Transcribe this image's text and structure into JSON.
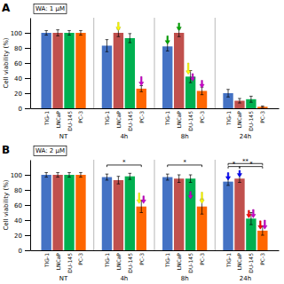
{
  "chart_data": [
    {
      "type": "bar",
      "title": "A",
      "subtitle": "WA: 1 μM",
      "categories": [
        "NT",
        "4h",
        "8h",
        "24h"
      ],
      "series": [
        {
          "name": "TIG-1",
          "color": "#4472C4",
          "values": [
            100,
            83,
            82,
            20
          ],
          "errors": [
            3,
            8,
            6,
            5
          ]
        },
        {
          "name": "LNCaP",
          "color": "#C0504D",
          "values": [
            100,
            100,
            100,
            10
          ],
          "errors": [
            4,
            5,
            5,
            3
          ]
        },
        {
          "name": "DU-145",
          "color": "#00B050",
          "values": [
            100,
            93,
            42,
            12
          ],
          "errors": [
            3,
            6,
            8,
            4
          ]
        },
        {
          "name": "PC-3",
          "color": "#FF6600",
          "values": [
            100,
            26,
            23,
            2
          ],
          "errors": [
            3,
            4,
            5,
            1
          ]
        }
      ],
      "ylabel": "Cell viability (%)",
      "ylim": [
        0,
        120
      ],
      "yticks": [
        0,
        20,
        40,
        60,
        80,
        100
      ],
      "grid": false,
      "annotations": [
        {
          "type": "arrow",
          "group": "4h",
          "series": "LNCaP",
          "color": "yellow",
          "y_tip": 103,
          "y_tail": 114
        },
        {
          "type": "arrow",
          "group": "4h",
          "series": "PC-3",
          "color": "#CC00CC",
          "y_tip": 30,
          "y_tail": 42
        },
        {
          "type": "arrow",
          "group": "8h",
          "series": "TIG-1",
          "color": "#00AA00",
          "y_tip": 85,
          "y_tail": 96
        },
        {
          "type": "arrow",
          "group": "8h",
          "series": "LNCaP",
          "color": "#00AA00",
          "y_tip": 103,
          "y_tail": 113
        },
        {
          "type": "arrow",
          "group": "8h",
          "series": "DU-145",
          "color": "yellow",
          "y_tip": 45,
          "y_tail": 60
        },
        {
          "type": "arrow",
          "group": "8h",
          "series": "DU-145",
          "color": "#CC00CC",
          "y_tip": 36,
          "y_tail": 46
        },
        {
          "type": "arrow",
          "group": "8h",
          "series": "PC-3",
          "color": "#CC00CC",
          "y_tip": 27,
          "y_tail": 37
        }
      ]
    },
    {
      "type": "bar",
      "title": "B",
      "subtitle": "WA: 2 μM",
      "categories": [
        "NT",
        "4h",
        "8h",
        "24h"
      ],
      "series": [
        {
          "name": "TIG-1",
          "color": "#4472C4",
          "values": [
            100,
            97,
            97,
            91
          ],
          "errors": [
            3,
            4,
            4,
            5
          ]
        },
        {
          "name": "LNCaP",
          "color": "#C0504D",
          "values": [
            100,
            93,
            95,
            95
          ],
          "errors": [
            3,
            5,
            5,
            5
          ]
        },
        {
          "name": "DU-145",
          "color": "#00B050",
          "values": [
            100,
            98,
            95,
            42
          ],
          "errors": [
            3,
            4,
            5,
            8
          ]
        },
        {
          "name": "PC-3",
          "color": "#FF6600",
          "values": [
            100,
            58,
            58,
            26
          ],
          "errors": [
            3,
            8,
            10,
            6
          ]
        }
      ],
      "ylabel": "Cell viability (%)",
      "ylim": [
        0,
        120
      ],
      "yticks": [
        0,
        20,
        40,
        60,
        80,
        100
      ],
      "grid": false,
      "annotations": [
        {
          "type": "arrow",
          "group": "4h",
          "series": "PC-3",
          "color": "yellow",
          "y_tip": 62,
          "y_tail": 76
        },
        {
          "type": "arrow",
          "group": "4h",
          "series": "PC-3",
          "color": "#CC00CC",
          "y_tip": 62,
          "y_tail": 72
        },
        {
          "type": "arrow",
          "group": "8h",
          "series": "PC-3",
          "color": "yellow",
          "y_tip": 62,
          "y_tail": 77
        },
        {
          "type": "arrow",
          "group": "8h",
          "series": "DU-145",
          "color": "#CC00CC",
          "y_tip": 68,
          "y_tail": 78
        },
        {
          "type": "arrow",
          "group": "24h",
          "series": "TIG-1",
          "color": "blue",
          "y_tip": 93,
          "y_tail": 103
        },
        {
          "type": "arrow",
          "group": "24h",
          "series": "LNCaP",
          "color": "blue",
          "y_tip": 97,
          "y_tail": 106
        },
        {
          "type": "arrow",
          "group": "24h",
          "series": "DU-145",
          "color": "red",
          "y_tip": 43,
          "y_tail": 53
        },
        {
          "type": "arrow",
          "group": "24h",
          "series": "PC-3",
          "color": "red",
          "y_tip": 28,
          "y_tail": 39
        },
        {
          "type": "arrow",
          "group": "24h",
          "series": "DU-145",
          "color": "#CC00CC",
          "y_tip": 43,
          "y_tail": 54
        },
        {
          "type": "arrow",
          "group": "24h",
          "series": "PC-3",
          "color": "#CC00CC",
          "y_tip": 28,
          "y_tail": 40
        },
        {
          "type": "bracket",
          "text": "*",
          "group": "4h",
          "from": "TIG-1",
          "to": "PC-3",
          "y": 113
        },
        {
          "type": "bracket",
          "text": "*",
          "group": "8h",
          "from": "TIG-1",
          "to": "PC-3",
          "y": 113
        },
        {
          "type": "bracket",
          "text": "**",
          "group": "24h",
          "from": "TIG-1",
          "to": "PC-3",
          "y": 115
        },
        {
          "type": "bracket",
          "text": "*",
          "group": "24h",
          "from": "TIG-1",
          "to": "LNCaP",
          "y": 111
        },
        {
          "type": "bracket",
          "text": "*",
          "group": "24h",
          "from": "LNCaP",
          "to": "PC-3",
          "y": 111
        }
      ]
    }
  ]
}
